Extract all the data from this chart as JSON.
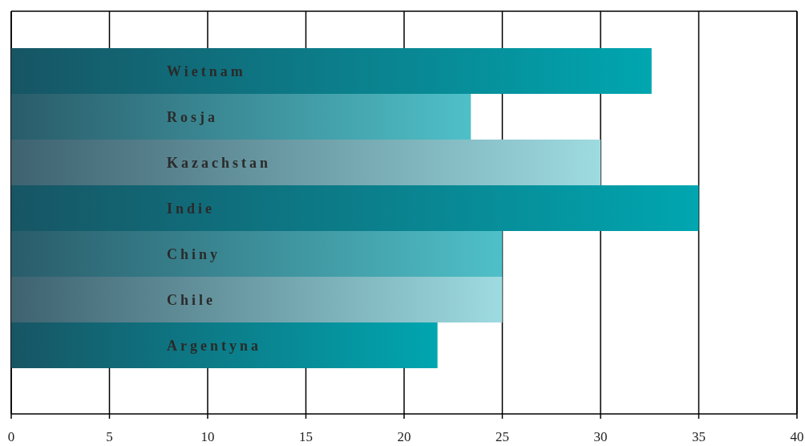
{
  "chart_data": {
    "type": "bar",
    "orientation": "horizontal",
    "categories": [
      "Wietnam",
      "Rosja",
      "Kazachstan",
      "Indie",
      "Chiny",
      "Chile",
      "Argentyna"
    ],
    "values": [
      32.6,
      23.4,
      30,
      35,
      25,
      25,
      21.7
    ],
    "colors": [
      "#00a6b0",
      "#4fc0c8",
      "#9edbe0",
      "#00a6b0",
      "#4fc0c8",
      "#9edbe0",
      "#00a6b0"
    ],
    "xlim": [
      0,
      40
    ],
    "xticks": [
      0,
      5,
      10,
      15,
      20,
      25,
      30,
      35,
      40
    ],
    "grid": "x"
  }
}
